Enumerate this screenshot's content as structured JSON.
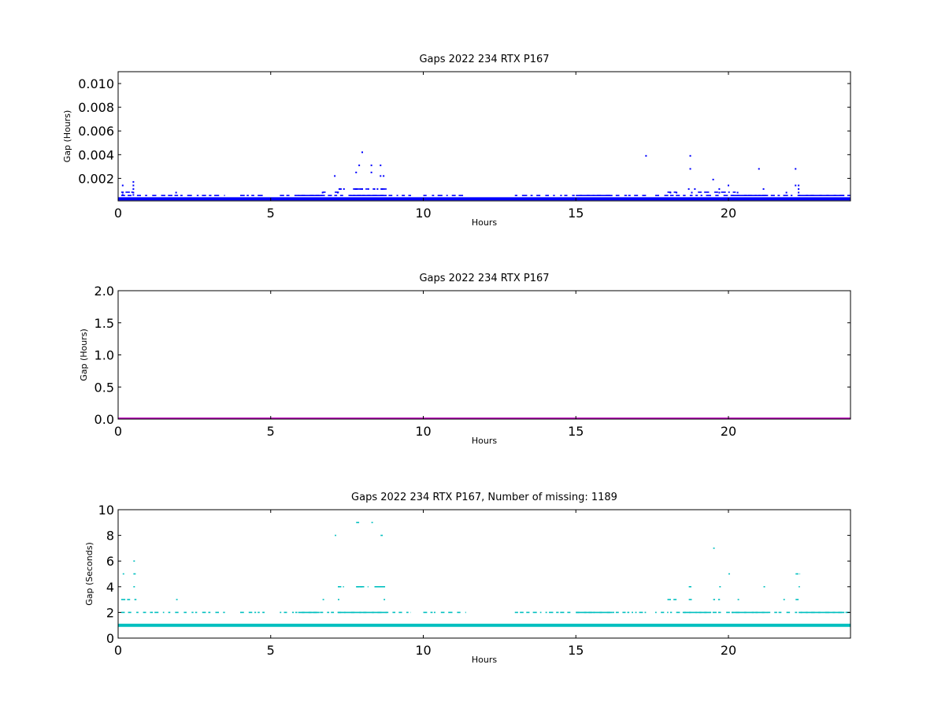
{
  "chart_data": [
    {
      "type": "scatter",
      "title": "Gaps 2022 234 RTX  P167",
      "xlabel": "Hours",
      "ylabel": "Gap (Hours)",
      "xlim": [
        0,
        24
      ],
      "ylim": [
        0.0001,
        0.011
      ],
      "xticks": [
        0,
        5,
        10,
        15,
        20
      ],
      "xtick_labels": [
        "0",
        "5",
        "10",
        "15",
        "20"
      ],
      "yticks": [
        0.002,
        0.004,
        0.006,
        0.008,
        0.01
      ],
      "ytick_labels": [
        "0.002",
        "0.004",
        "0.006",
        "0.008",
        "0.010"
      ],
      "grid": false,
      "color": "#0000ff",
      "baseline": {
        "x_range": [
          0,
          24
        ],
        "y": 0.000278
      },
      "points": {
        "x": [
          0.15,
          0.15,
          0.15,
          0.5,
          0.5,
          0.5,
          0.5,
          0.5,
          1.9,
          6.7,
          7.1,
          7.2,
          7.25,
          7.3,
          7.4,
          7.8,
          7.8,
          7.9,
          8.0,
          7.8,
          8.0,
          8.2,
          8.3,
          8.3,
          8.4,
          8.5,
          8.6,
          8.6,
          8.65,
          8.7,
          17.3,
          18.1,
          18.3,
          18.7,
          18.75,
          18.75,
          18.9,
          18.8,
          19.5,
          19.7,
          19.7,
          20.0,
          20.3,
          21.0,
          21.15,
          21.9,
          22.2,
          22.2,
          22.3,
          22.3,
          22.3
        ],
        "y": [
          0.0006,
          0.0008,
          0.0014,
          0.0006,
          0.0008,
          0.0011,
          0.0014,
          0.0017,
          0.0008,
          0.0008,
          0.0022,
          0.0008,
          0.0011,
          0.0011,
          0.0011,
          0.0011,
          0.0025,
          0.0031,
          0.0042,
          0.0011,
          0.0011,
          0.0011,
          0.0025,
          0.0031,
          0.0011,
          0.0011,
          0.0022,
          0.0031,
          0.0011,
          0.0022,
          0.0039,
          0.0008,
          0.0008,
          0.0011,
          0.0028,
          0.0039,
          0.0011,
          0.0008,
          0.0019,
          0.0008,
          0.0011,
          0.0014,
          0.0008,
          0.0028,
          0.0011,
          0.0008,
          0.0028,
          0.0014,
          0.0014,
          0.0011,
          0.0008
        ]
      },
      "dense_bands": [
        {
          "y": 0.000556,
          "ranges": [
            [
              0.1,
              3.5
            ],
            [
              4.0,
              4.8
            ],
            [
              5.3,
              9.6
            ],
            [
              10.0,
              11.4
            ],
            [
              13.0,
              17.3
            ],
            [
              17.6,
              24.0
            ]
          ],
          "solid": [
            [
              5.9,
              6.7
            ],
            [
              7.6,
              8.8
            ],
            [
              15.0,
              16.2
            ],
            [
              20.1,
              21.3
            ],
            [
              22.3,
              23.8
            ]
          ]
        },
        {
          "y": 0.000833,
          "ranges": [
            [
              0.1,
              0.6
            ],
            [
              6.7,
              6.8
            ],
            [
              7.1,
              7.3
            ],
            [
              18.0,
              18.3
            ],
            [
              19.0,
              20.3
            ]
          ],
          "solid": []
        },
        {
          "y": 0.0011,
          "ranges": [
            [
              7.7,
              8.8
            ]
          ],
          "solid": [
            [
              7.7,
              8.0
            ],
            [
              8.6,
              8.8
            ]
          ]
        }
      ]
    },
    {
      "type": "line",
      "title": "Gaps 2022 234 RTX  P167",
      "xlabel": "Hours",
      "ylabel": "Gap (Hours)",
      "xlim": [
        0,
        24
      ],
      "ylim": [
        0,
        2.0
      ],
      "xticks": [
        0,
        5,
        10,
        15,
        20
      ],
      "xtick_labels": [
        "0",
        "5",
        "10",
        "15",
        "20"
      ],
      "yticks": [
        0.0,
        0.5,
        1.0,
        1.5,
        2.0
      ],
      "ytick_labels": [
        "0.0",
        "0.5",
        "1.0",
        "1.5",
        "2.0"
      ],
      "grid": false,
      "color": "#bf00bf",
      "baseline": {
        "x_range": [
          0,
          24
        ],
        "y": 0.0
      }
    },
    {
      "type": "scatter",
      "title": "Gaps 2022 234 RTX  P167, Number of missing: 1189",
      "xlabel": "Hours",
      "ylabel": "Gap (Seconds)",
      "xlim": [
        0,
        24
      ],
      "ylim": [
        0,
        10
      ],
      "xticks": [
        0,
        5,
        10,
        15,
        20
      ],
      "xtick_labels": [
        "0",
        "5",
        "10",
        "15",
        "20"
      ],
      "yticks": [
        0,
        2,
        4,
        6,
        8,
        10
      ],
      "ytick_labels": [
        "0",
        "2",
        "4",
        "6",
        "8",
        "10"
      ],
      "grid": false,
      "color": "#00bfbf",
      "baseline": {
        "x_range": [
          0,
          24
        ],
        "y": 1
      }
    }
  ]
}
